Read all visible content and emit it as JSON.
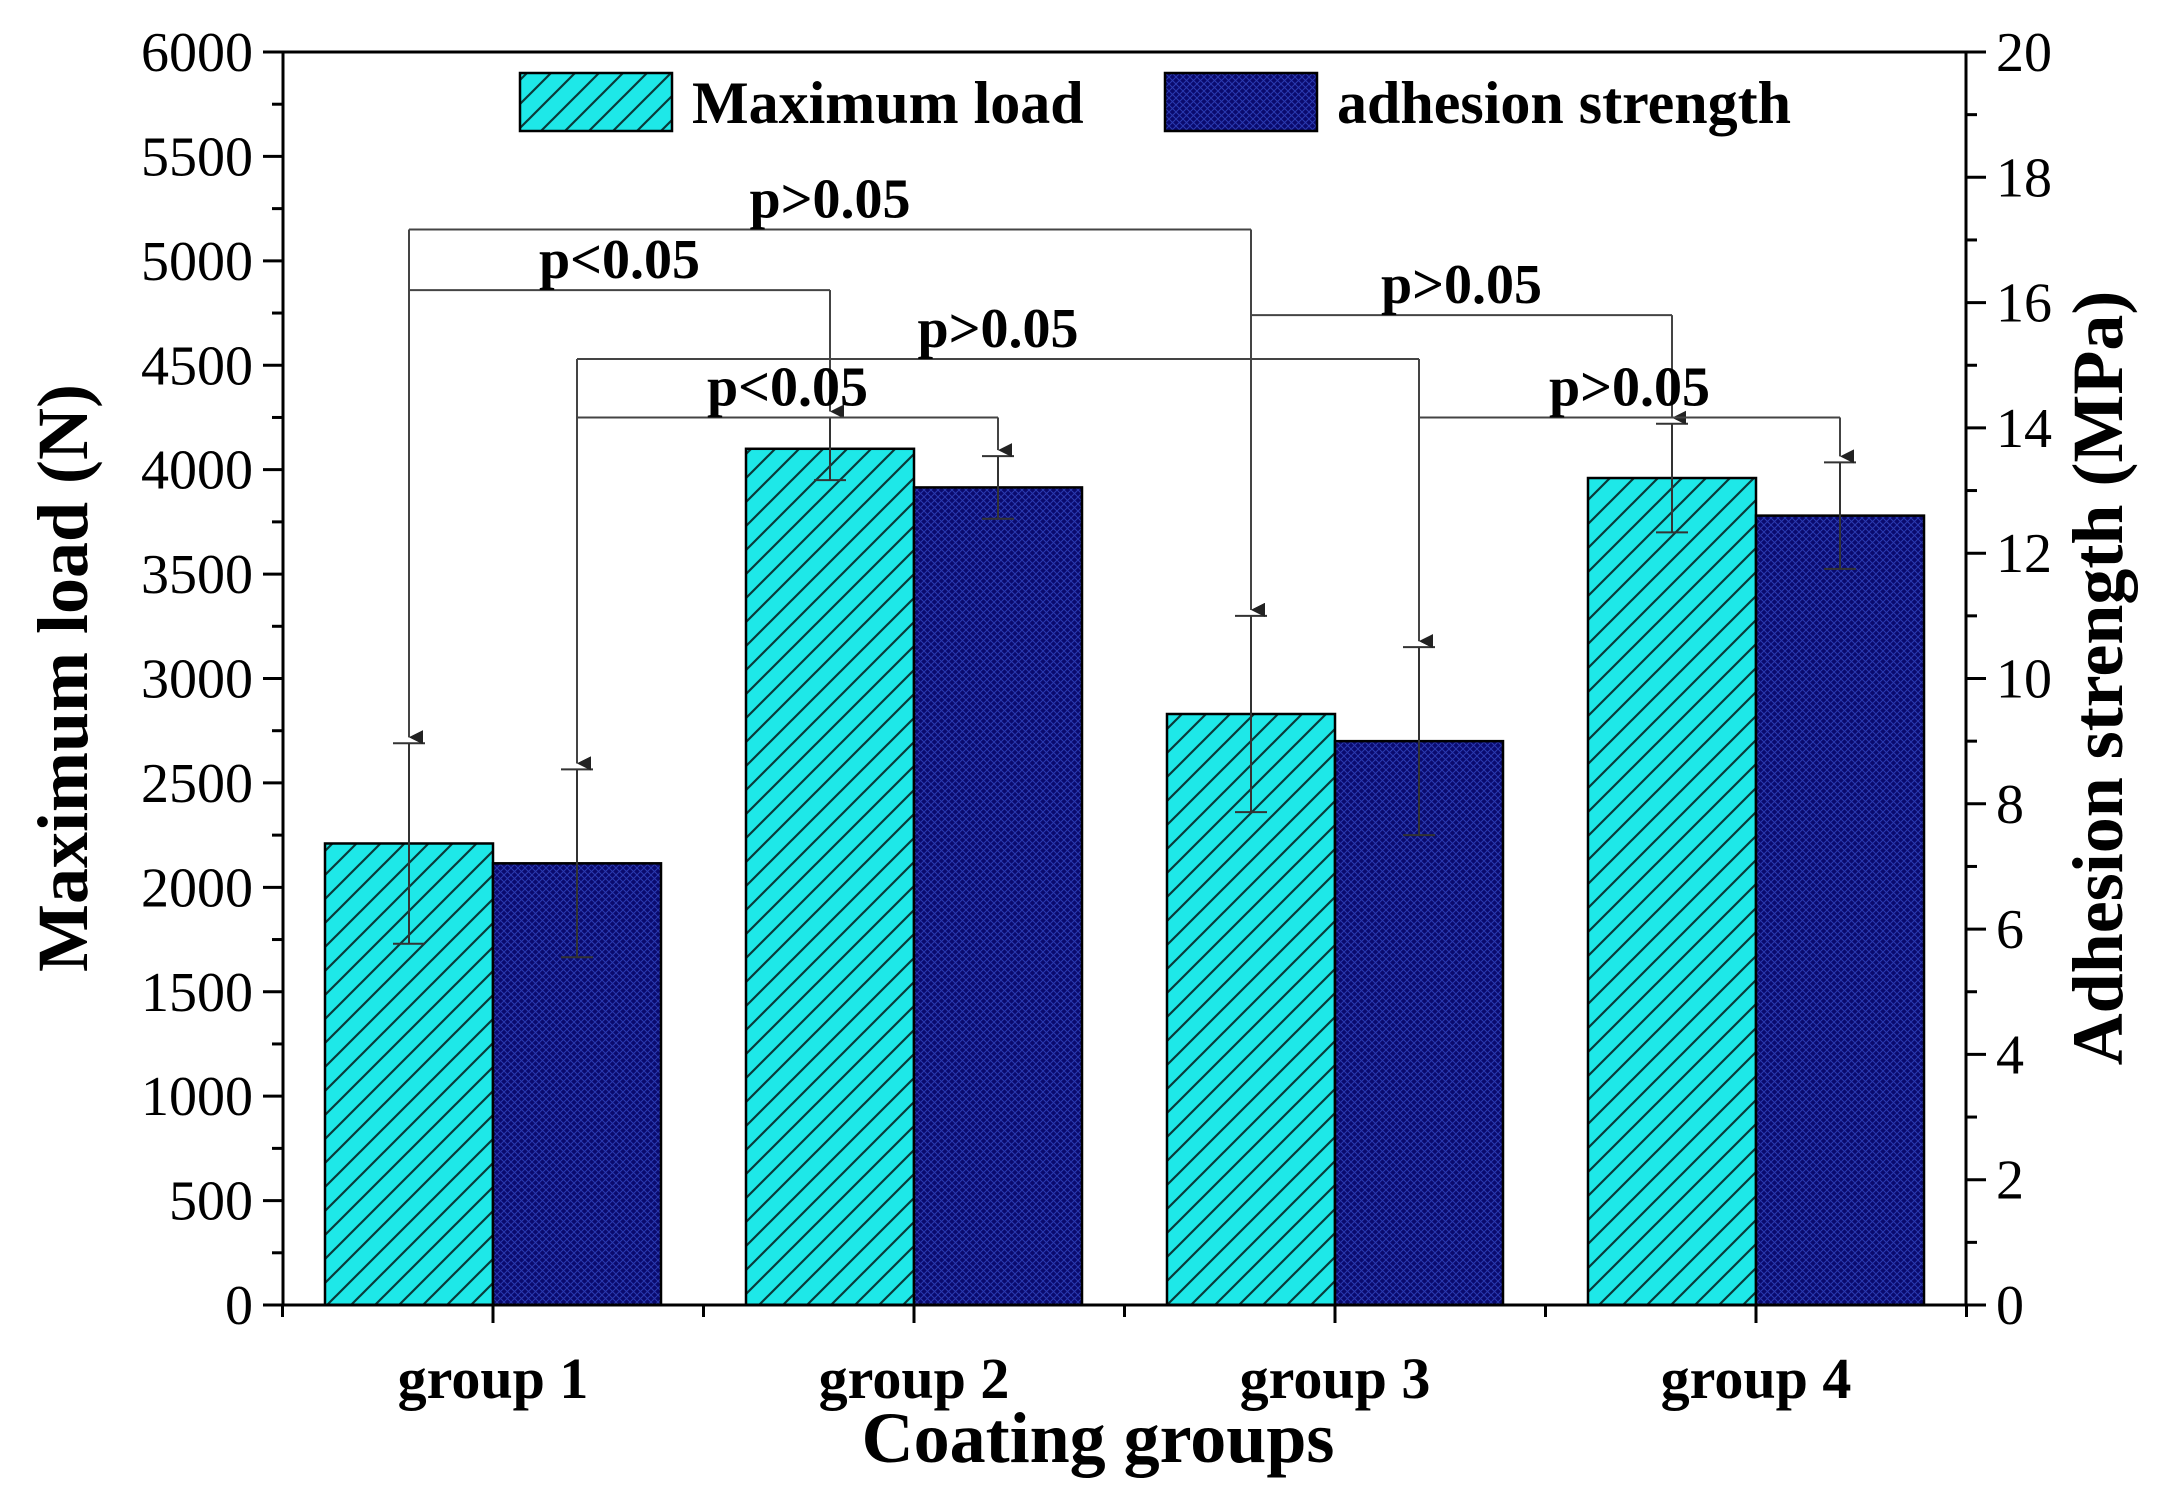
{
  "chart_data": {
    "type": "bar",
    "title": "",
    "xlabel": "Coating groups",
    "ylabel": "Maximum load (N)",
    "y2label": "Adhesion strength (MPa)",
    "categories": [
      "group 1",
      "group 2",
      "group 3",
      "group 4"
    ],
    "ylim": [
      0,
      6000
    ],
    "y2lim": [
      0,
      20
    ],
    "yticks": [
      "0",
      "500",
      "1000",
      "1500",
      "2000",
      "2500",
      "3000",
      "3500",
      "4000",
      "4500",
      "5000",
      "5500",
      "6000"
    ],
    "y2ticks": [
      "0",
      "2",
      "4",
      "6",
      "8",
      "10",
      "12",
      "14",
      "16",
      "18",
      "20"
    ],
    "legend_position": "top-center",
    "grid": false,
    "series": [
      {
        "name": "Maximum load",
        "axis": "left",
        "color": "#1ee8e8",
        "pattern": "diagonal-hatch",
        "values": [
          2210,
          4100,
          2830,
          3960
        ],
        "error": [
          480,
          150,
          470,
          260
        ]
      },
      {
        "name": "adhesion strength",
        "axis": "right",
        "color": "#0a0a6e",
        "pattern": "cross-hatch",
        "values": [
          7.05,
          13.05,
          9.0,
          12.6
        ],
        "error": [
          1.5,
          0.5,
          1.5,
          0.85
        ]
      }
    ],
    "annotations": [
      {
        "label": "p>0.05",
        "from": [
          0,
          0
        ],
        "to": [
          2,
          0
        ],
        "level": 5150
      },
      {
        "label": "p<0.05",
        "from": [
          0,
          0
        ],
        "to": [
          1,
          0
        ],
        "level": 4860
      },
      {
        "label": "p>0.05",
        "from": [
          2,
          0
        ],
        "to": [
          3,
          0
        ],
        "level": 4740
      },
      {
        "label": "p>0.05",
        "from": [
          0,
          1
        ],
        "to": [
          2,
          1
        ],
        "level": 4530
      },
      {
        "label": "p<0.05",
        "from": [
          0,
          1
        ],
        "to": [
          1,
          1
        ],
        "level": 4250
      },
      {
        "label": "p>0.05",
        "from": [
          2,
          1
        ],
        "to": [
          3,
          1
        ],
        "level": 4250
      }
    ]
  }
}
